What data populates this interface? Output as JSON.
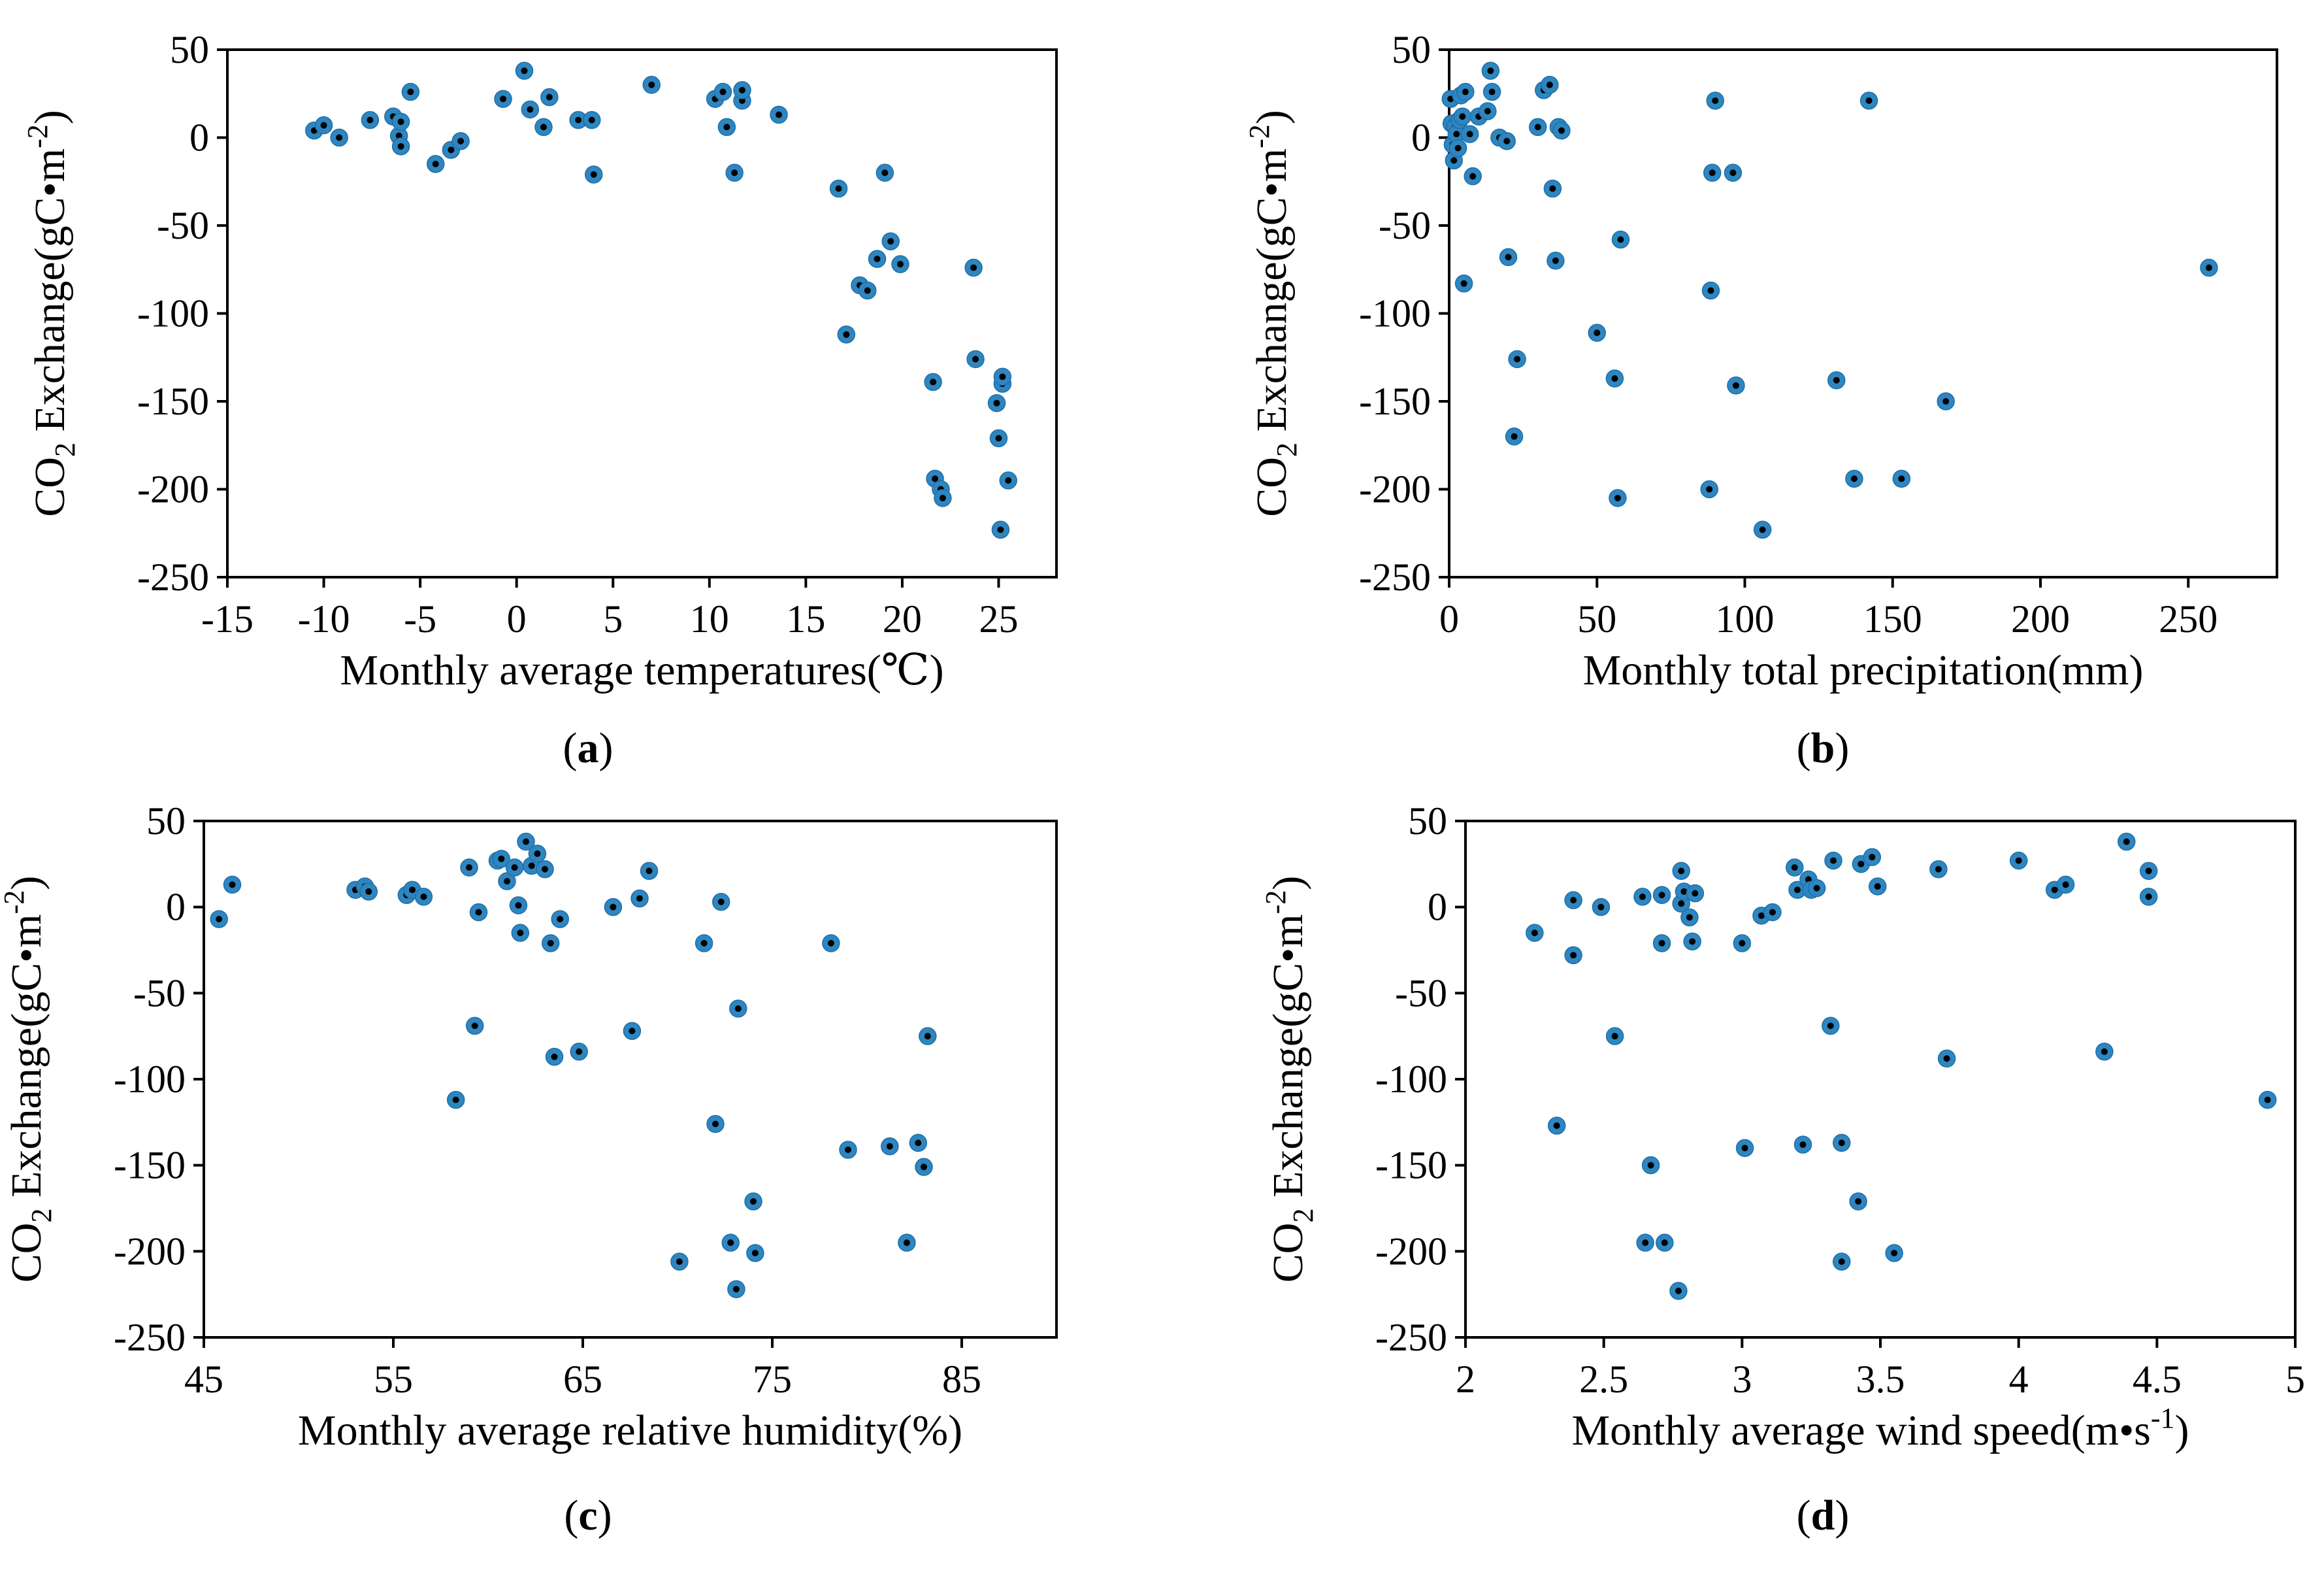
{
  "colors": {
    "marker": "#2e86c1",
    "marker_center": "#000000",
    "axis": "#000000"
  },
  "chart_data": [
    {
      "type": "scatter",
      "panel_label": "a",
      "xlabel": "Monthly average temperatures(℃)",
      "ylabel": "CO₂ Exchange(gC•m⁻²)",
      "ylabel_parts": {
        "main": "CO",
        "sub": "2",
        "rest": " Exchange(gC•m",
        "sup": "-2",
        "end": ")"
      },
      "xlim": [
        -15,
        28
      ],
      "ylim": [
        -250,
        50
      ],
      "xticks": [
        -15,
        -10,
        -5,
        0,
        5,
        10,
        15,
        20,
        25
      ],
      "yticks": [
        50,
        0,
        -50,
        -100,
        -150,
        -200,
        -250
      ],
      "x": [
        -10.5,
        -10.0,
        -9.2,
        -7.6,
        -6.4,
        -6.1,
        -6.0,
        -6.0,
        -5.5,
        -4.2,
        -3.4,
        -2.9,
        -0.7,
        0.4,
        0.7,
        1.4,
        1.7,
        3.2,
        3.9,
        4.0,
        7.0,
        10.3,
        10.7,
        10.9,
        11.3,
        11.7,
        11.7,
        13.6,
        16.7,
        17.1,
        17.8,
        18.2,
        18.7,
        19.1,
        19.4,
        19.9,
        21.6,
        21.7,
        22.0,
        22.1,
        23.7,
        23.8,
        24.9,
        25.0,
        25.1,
        25.2,
        25.2,
        25.5
      ],
      "y": [
        4,
        7,
        0,
        10,
        12,
        1,
        -5,
        9,
        26,
        -15,
        -7,
        -2,
        22,
        38,
        16,
        6,
        23,
        10,
        10,
        -21,
        30,
        22,
        26,
        6,
        -20,
        21,
        27,
        13,
        -29,
        -112,
        -84,
        -87,
        -69,
        -20,
        -59,
        -72,
        -139,
        -194,
        -200,
        -205,
        -74,
        -126,
        -151,
        -171,
        -223,
        -140,
        -136,
        -195
      ]
    },
    {
      "type": "scatter",
      "panel_label": "b",
      "xlabel": "Monthly total precipitation(mm)",
      "ylabel": "CO₂ Exchange(gC•m⁻²)",
      "ylabel_parts": {
        "main": "CO",
        "sub": "2",
        "rest": " Exchange(gC•m",
        "sup": "-2",
        "end": ")"
      },
      "xlim": [
        0,
        280
      ],
      "ylim": [
        -250,
        50
      ],
      "xticks": [
        0,
        50,
        100,
        150,
        200,
        250
      ],
      "yticks": [
        50,
        0,
        -50,
        -100,
        -150,
        -200,
        -250
      ],
      "x": [
        0.5,
        0.8,
        1.2,
        1.6,
        2.0,
        2.5,
        3.0,
        3.5,
        4.0,
        4.5,
        5.0,
        5.5,
        7.0,
        8.0,
        10.0,
        13.0,
        14.0,
        14.5,
        17.0,
        19.5,
        20.0,
        22.0,
        23.0,
        30.0,
        32.0,
        34.0,
        35.0,
        36.0,
        37.0,
        38.0,
        50.0,
        56.0,
        57.0,
        58.0,
        88.0,
        88.5,
        89.0,
        90.0,
        96.0,
        97.0,
        106.0,
        131.0,
        137.0,
        142.0,
        153.0,
        168.0,
        257.0
      ],
      "y": [
        22,
        8,
        -4,
        -13,
        6,
        2,
        -6,
        10,
        24,
        12,
        -83,
        26,
        2,
        -22,
        12,
        15,
        38,
        26,
        0,
        -2,
        -68,
        -170,
        -126,
        6,
        27,
        30,
        -29,
        -70,
        6,
        4,
        -111,
        -137,
        -205,
        -58,
        -200,
        -87,
        -20,
        21,
        -20,
        -141,
        -223,
        -138,
        -194,
        21,
        -194,
        -150,
        -74
      ]
    },
    {
      "type": "scatter",
      "panel_label": "c",
      "xlabel": "Monthly average relative humidity(%)",
      "ylabel": "CO₂ Exchange(gC•m⁻²)",
      "ylabel_parts": {
        "main": "CO",
        "sub": "2",
        "rest": " Exchange(gC•m",
        "sup": "-2",
        "end": ")"
      },
      "xlim": [
        45,
        90
      ],
      "ylim": [
        -250,
        50
      ],
      "xticks": [
        45,
        55,
        65,
        75,
        85
      ],
      "yticks": [
        50,
        0,
        -50,
        -100,
        -150,
        -200,
        -250
      ],
      "x": [
        45.8,
        46.5,
        53.0,
        53.5,
        53.7,
        55.7,
        56.0,
        56.6,
        58.3,
        59.0,
        59.3,
        59.5,
        60.5,
        60.7,
        61.0,
        61.4,
        61.6,
        61.7,
        62.0,
        62.3,
        62.6,
        63.0,
        63.3,
        63.5,
        63.8,
        64.8,
        66.6,
        67.6,
        68.0,
        68.5,
        70.1,
        71.4,
        72.0,
        72.3,
        72.8,
        73.1,
        73.2,
        74.0,
        74.1,
        78.1,
        79.0,
        81.2,
        82.1,
        82.7,
        83.0,
        83.2
      ],
      "y": [
        -7,
        13,
        10,
        12,
        9,
        7,
        10,
        6,
        -112,
        23,
        -69,
        -3,
        27,
        28,
        15,
        23,
        1,
        -15,
        38,
        24,
        31,
        22,
        -21,
        -87,
        -7,
        -84,
        0,
        -72,
        5,
        21,
        -206,
        -21,
        -126,
        3,
        -195,
        -222,
        -59,
        -171,
        -201,
        -21,
        -141,
        -139,
        -195,
        -137,
        -151,
        -75
      ]
    },
    {
      "type": "scatter",
      "panel_label": "d",
      "xlabel": "Monthly  average wind speed(m•s⁻¹)",
      "xlabel_parts": {
        "main": "Monthly  average wind speed(m•s",
        "sup": "-1",
        "end": ")"
      },
      "ylabel": "CO₂ Exchange(gC•m⁻²)",
      "ylabel_parts": {
        "main": "CO",
        "sub": "2",
        "rest": " Exchange(gC•m",
        "sup": "-2",
        "end": ")"
      },
      "xlim": [
        2,
        5
      ],
      "ylim": [
        -250,
        50
      ],
      "xticks": [
        2,
        2.5,
        3,
        3.5,
        4,
        4.5,
        5
      ],
      "xtick_labels": [
        "2",
        "2.5",
        "3",
        "3.5",
        "4",
        "4.5",
        "5"
      ],
      "yticks": [
        50,
        0,
        -50,
        -100,
        -150,
        -200,
        -250
      ],
      "x": [
        2.25,
        2.33,
        2.39,
        2.39,
        2.49,
        2.54,
        2.64,
        2.65,
        2.67,
        2.71,
        2.71,
        2.72,
        2.77,
        2.78,
        2.78,
        2.79,
        2.81,
        2.82,
        2.83,
        3.0,
        3.01,
        3.07,
        3.11,
        3.19,
        3.2,
        3.22,
        3.24,
        3.25,
        3.27,
        3.32,
        3.33,
        3.36,
        3.36,
        3.42,
        3.43,
        3.47,
        3.49,
        3.55,
        3.71,
        3.74,
        4.0,
        4.13,
        4.17,
        4.31,
        4.39,
        4.47,
        4.47,
        4.9
      ],
      "y": [
        -15,
        -127,
        4,
        -28,
        0,
        -75,
        6,
        -195,
        -150,
        -21,
        7,
        -195,
        -223,
        2,
        21,
        9,
        -6,
        -20,
        8,
        -21,
        -140,
        -5,
        -3,
        23,
        10,
        -138,
        16,
        10,
        11,
        -69,
        27,
        -137,
        -206,
        -171,
        25,
        29,
        12,
        -201,
        22,
        -88,
        27,
        10,
        13,
        -84,
        38,
        21,
        6,
        -112
      ]
    }
  ]
}
